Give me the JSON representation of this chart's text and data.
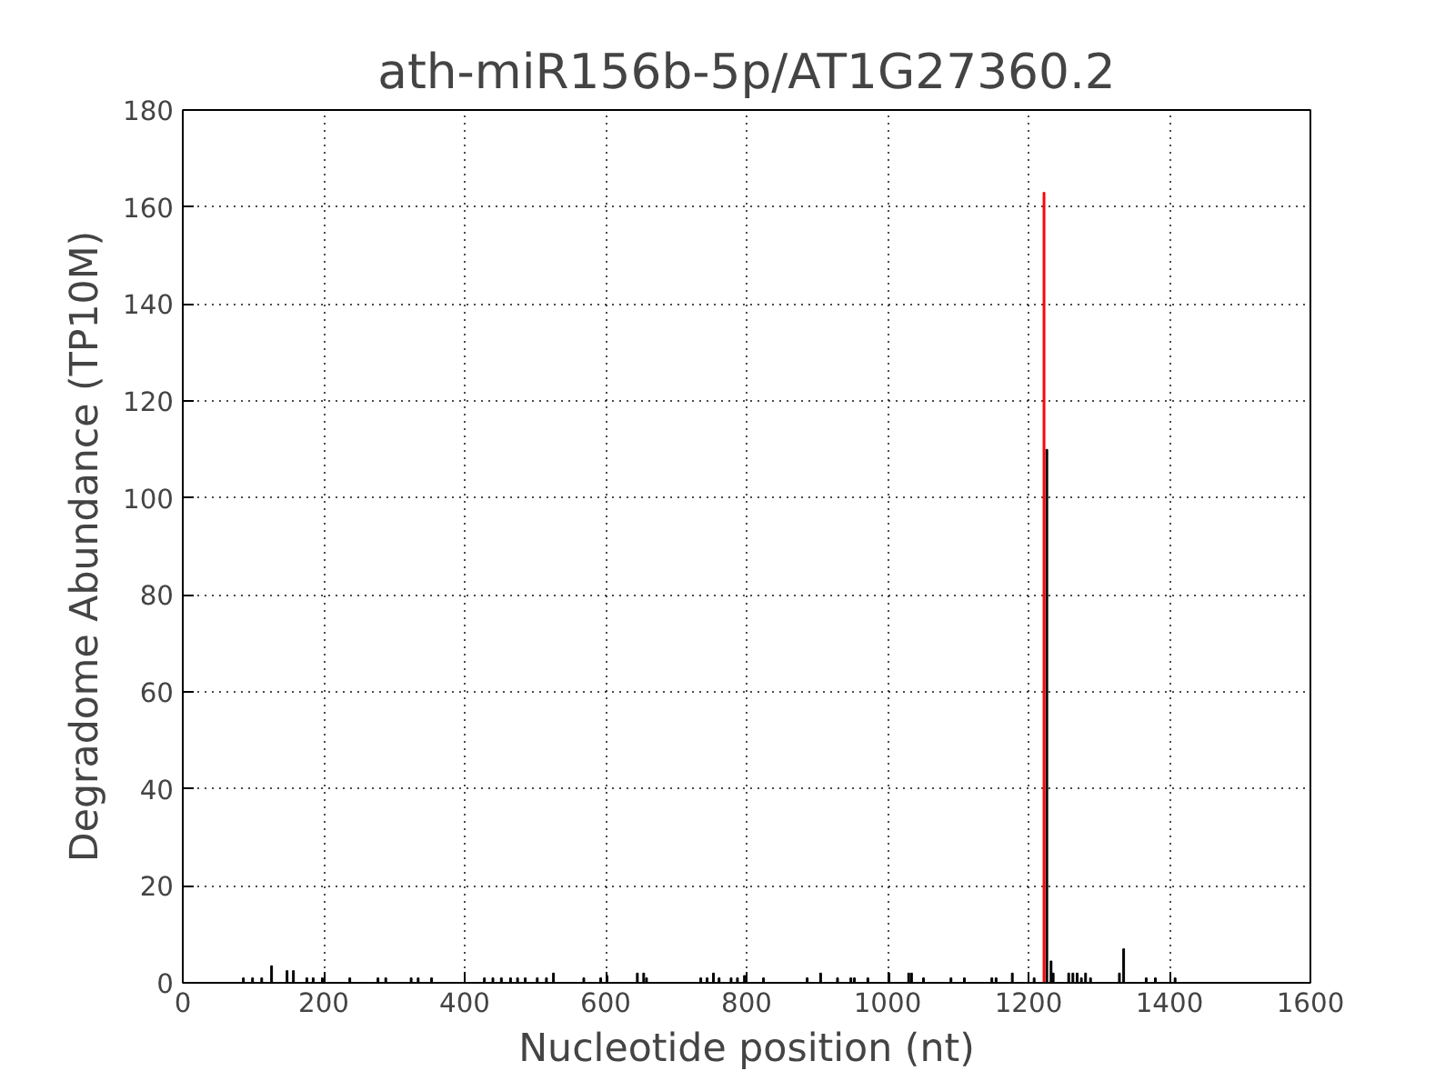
{
  "chart_data": {
    "type": "bar",
    "title": "ath-miR156b-5p/AT1G27360.2",
    "xlabel": "Nucleotide position (nt)",
    "ylabel": "Degradome Abundance (TP10M)",
    "xlim": [
      0,
      1600
    ],
    "ylim": [
      0,
      180
    ],
    "xticks": [
      0,
      200,
      400,
      600,
      800,
      1000,
      1200,
      1400,
      1600
    ],
    "yticks": [
      0,
      20,
      40,
      60,
      80,
      100,
      120,
      140,
      160,
      180
    ],
    "grid": true,
    "series": [
      {
        "color": "#000000",
        "x": [
          86,
          99,
          112,
          126,
          148,
          157,
          176,
          185,
          198,
          237,
          277,
          288,
          324,
          334,
          353,
          428,
          440,
          452,
          465,
          475,
          486,
          503,
          516,
          526,
          569,
          593,
          602,
          645,
          654,
          658,
          735,
          744,
          753,
          761,
          778,
          787,
          797,
          824,
          886,
          905,
          929,
          948,
          953,
          972,
          1002,
          1030,
          1034,
          1051,
          1090,
          1109,
          1148,
          1154,
          1177,
          1208,
          1226,
          1232,
          1235,
          1257,
          1263,
          1269,
          1275,
          1281,
          1288,
          1329,
          1335,
          1367,
          1380,
          1408
        ],
        "values": [
          1,
          1,
          1,
          3.5,
          2.5,
          2.5,
          1,
          1,
          1,
          1,
          1,
          1,
          1,
          1,
          1,
          1,
          1,
          1,
          1,
          1,
          1,
          1,
          1,
          2,
          1,
          1,
          1.5,
          2,
          2,
          1,
          1,
          1,
          2,
          1,
          1,
          1,
          1.5,
          1,
          1,
          2,
          1,
          1,
          1,
          1,
          2,
          2,
          2,
          1,
          1,
          1,
          1,
          1,
          2,
          1,
          110,
          4.5,
          2,
          2,
          2,
          2,
          1,
          2,
          1,
          2,
          7,
          1,
          1,
          1
        ]
      },
      {
        "color": "#ff0000",
        "x": [
          1222
        ],
        "values": [
          163
        ]
      }
    ]
  }
}
